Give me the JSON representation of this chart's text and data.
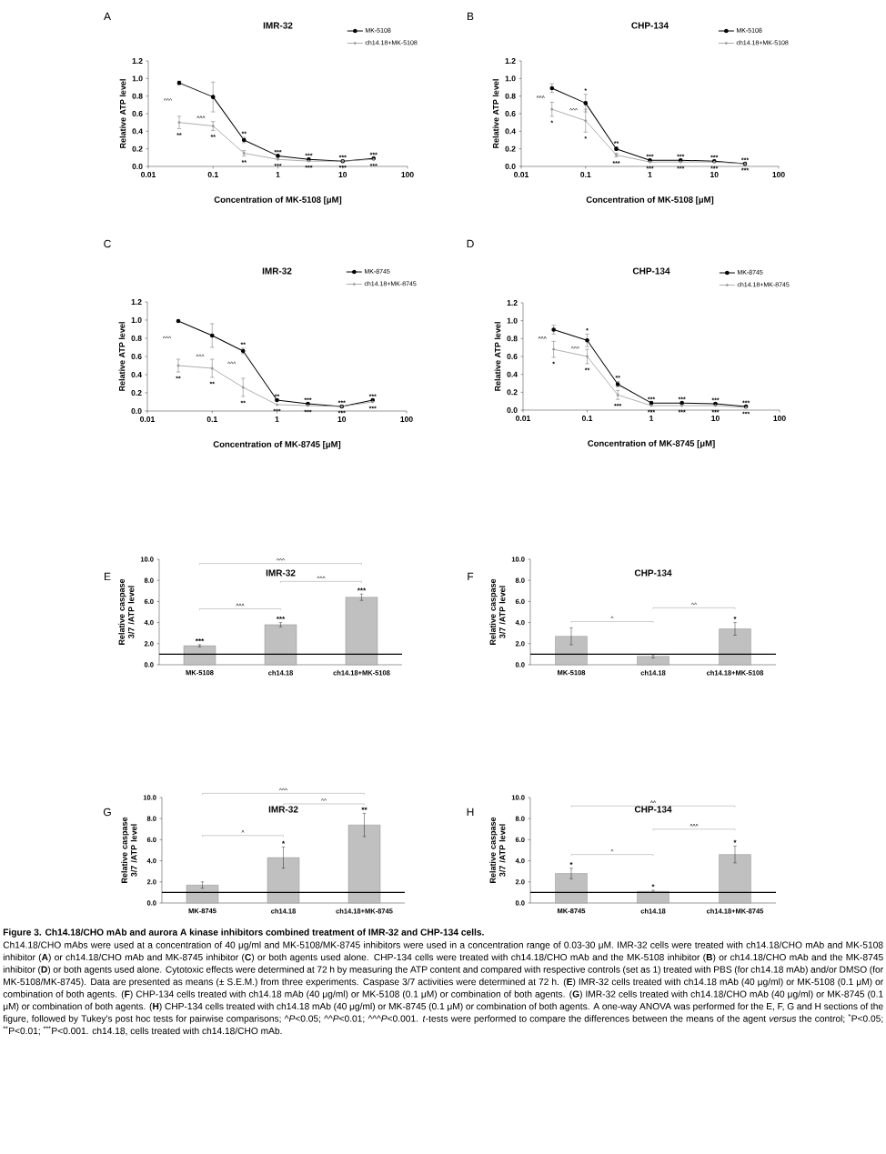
{
  "chart_data": [
    {
      "type": "line",
      "title": "IMR-32",
      "xlabel": "Concentration of MK-5108 [μM]",
      "ylabel": "Relative ATP level",
      "log": "x",
      "marker": "circle",
      "legend": "top right",
      "x": [
        0.03,
        0.1,
        0.3,
        1,
        3,
        10,
        30
      ],
      "xlim": [
        0.01,
        100
      ],
      "xticks": [
        0.01,
        0.1,
        1,
        10,
        100
      ],
      "ylim": [
        0,
        1.2
      ],
      "yticks": [
        {
          "value": 0,
          "label": "0.0"
        },
        {
          "value": 0.2,
          "label": "0.2"
        },
        {
          "value": 0.4,
          "label": "0.4"
        },
        {
          "value": 0.6,
          "label": "0.6"
        },
        {
          "value": 0.8,
          "label": "0.8"
        },
        {
          "value": 1,
          "label": "1.0"
        },
        {
          "value": 1.2,
          "label": "1.2"
        }
      ],
      "series": [
        {
          "name": "MK-5108",
          "color": "#000000",
          "values": [
            0.95,
            0.79,
            0.3,
            0.12,
            0.08,
            0.06,
            0.09
          ],
          "errors": [
            0.02,
            0.17,
            0.03,
            null,
            null,
            null,
            null
          ],
          "value_labels": [
            null,
            null,
            "**",
            "***",
            "***",
            "***",
            "***"
          ]
        },
        {
          "name": "ch14.18+MK-5108",
          "color": "#999999",
          "values": [
            0.5,
            0.46,
            0.15,
            0.08,
            0.06,
            0.06,
            0.08
          ],
          "errors": [
            0.07,
            0.05,
            0.03,
            null,
            null,
            null,
            null
          ],
          "value_labels": [
            "**",
            "**",
            "**",
            "***",
            "***",
            "***",
            "***"
          ]
        }
      ],
      "annotations": [
        "A",
        "^^^",
        "^^^"
      ]
    },
    {
      "type": "line",
      "title": "CHP-134",
      "xlabel": "Concentration of MK-5108 [μM]",
      "ylabel": "Relative ATP level",
      "log": "x",
      "marker": "circle",
      "legend": "top right",
      "x": [
        0.03,
        0.1,
        0.3,
        1,
        3,
        10,
        30
      ],
      "xlim": [
        0.01,
        100
      ],
      "xticks": [
        0.01,
        0.1,
        1,
        10,
        100
      ],
      "ylim": [
        0,
        1.2
      ],
      "yticks": [
        {
          "value": 0,
          "label": "0.0"
        },
        {
          "value": 0.2,
          "label": "0.2"
        },
        {
          "value": 0.4,
          "label": "0.4"
        },
        {
          "value": 0.6,
          "label": "0.6"
        },
        {
          "value": 0.8,
          "label": "0.8"
        },
        {
          "value": 1,
          "label": "1.0"
        },
        {
          "value": 1.2,
          "label": "1.2"
        }
      ],
      "series": [
        {
          "name": "MK-5108",
          "color": "#000000",
          "values": [
            0.89,
            0.72,
            0.2,
            0.07,
            0.07,
            0.06,
            0.03
          ],
          "errors": [
            0.05,
            0.1,
            0.02,
            null,
            null,
            null,
            null
          ],
          "value_labels": [
            null,
            "*",
            "**",
            "***",
            "***",
            "***",
            "***"
          ]
        },
        {
          "name": "ch14.18+MK-5108",
          "color": "#999999",
          "values": [
            0.65,
            0.52,
            0.13,
            0.05,
            0.05,
            0.05,
            0.03
          ],
          "errors": [
            0.08,
            0.13,
            0.02,
            null,
            null,
            null,
            null
          ],
          "value_labels": [
            "*",
            "*",
            "***",
            "***",
            "***",
            "***",
            "***"
          ]
        }
      ],
      "annotations": [
        "B",
        "^^^",
        "^^^"
      ]
    },
    {
      "type": "line",
      "title": "IMR-32",
      "xlabel": "Concentration of MK-8745 [μM]",
      "ylabel": "Relative ATP level",
      "log": "x",
      "marker": "circle",
      "legend": "top right",
      "x": [
        0.03,
        0.1,
        0.3,
        1,
        3,
        10,
        30
      ],
      "xlim": [
        0.01,
        100
      ],
      "xticks": [
        0.01,
        0.1,
        1,
        10,
        100
      ],
      "ylim": [
        0,
        1.2
      ],
      "yticks": [
        {
          "value": 0,
          "label": "0.0"
        },
        {
          "value": 0.2,
          "label": "0.2"
        },
        {
          "value": 0.4,
          "label": "0.4"
        },
        {
          "value": 0.6,
          "label": "0.6"
        },
        {
          "value": 0.8,
          "label": "0.8"
        },
        {
          "value": 1,
          "label": "1.0"
        },
        {
          "value": 1.2,
          "label": "1.2"
        }
      ],
      "series": [
        {
          "name": "MK-8745",
          "color": "#000000",
          "values": [
            0.99,
            0.83,
            0.66,
            0.12,
            0.08,
            0.05,
            0.12
          ],
          "errors": [
            null,
            0.13,
            0.03,
            null,
            null,
            null,
            null
          ],
          "value_labels": [
            null,
            null,
            "**",
            "**",
            "***",
            "***",
            "***"
          ]
        },
        {
          "name": "ch14.18+MK-8745",
          "color": "#999999",
          "values": [
            0.5,
            0.47,
            0.26,
            0.07,
            0.06,
            0.05,
            0.1
          ],
          "errors": [
            0.07,
            0.1,
            0.1,
            null,
            null,
            null,
            null
          ],
          "value_labels": [
            "**",
            "**",
            "**",
            "***",
            "***",
            "***",
            "***"
          ]
        }
      ],
      "annotations": [
        "C",
        "^^^",
        "^^^",
        "^^^"
      ]
    },
    {
      "type": "line",
      "title": "CHP-134",
      "xlabel": "Concentration of MK-8745 [μM]",
      "ylabel": "Relative ATP level",
      "log": "x",
      "marker": "circle",
      "legend": "top right",
      "x": [
        0.03,
        0.1,
        0.3,
        1,
        3,
        10,
        30
      ],
      "xlim": [
        0.01,
        100
      ],
      "xticks": [
        0.01,
        0.1,
        1,
        10,
        100
      ],
      "ylim": [
        0,
        1.2
      ],
      "yticks": [
        {
          "value": 0,
          "label": "0.0"
        },
        {
          "value": 0.2,
          "label": "0.2"
        },
        {
          "value": 0.4,
          "label": "0.4"
        },
        {
          "value": 0.6,
          "label": "0.6"
        },
        {
          "value": 0.8,
          "label": "0.8"
        },
        {
          "value": 1,
          "label": "1.0"
        },
        {
          "value": 1.2,
          "label": "1.2"
        }
      ],
      "series": [
        {
          "name": "MK-8745",
          "color": "#000000",
          "values": [
            0.9,
            0.78,
            0.29,
            0.08,
            0.08,
            0.07,
            0.04
          ],
          "errors": [
            0.05,
            0.07,
            0.03,
            null,
            null,
            null,
            null
          ],
          "value_labels": [
            null,
            "*",
            "**",
            "***",
            "***",
            "***",
            "***"
          ]
        },
        {
          "name": "ch14.18+MK-8745",
          "color": "#999999",
          "values": [
            0.68,
            0.6,
            0.17,
            0.05,
            0.05,
            0.05,
            0.03
          ],
          "errors": [
            0.09,
            0.08,
            0.05,
            null,
            null,
            null,
            null
          ],
          "value_labels": [
            "*",
            "**",
            "***",
            "***",
            "***",
            "***",
            "***"
          ]
        }
      ],
      "annotations": [
        "D",
        "^^^",
        "^^^"
      ]
    },
    {
      "type": "bar",
      "title": "IMR-32",
      "ylabel": "Relative caspase 3/7 /ATP level",
      "categories": [
        "MK-5108",
        "ch14.18",
        "ch14.18+MK-5108"
      ],
      "color": "#c0c0c0",
      "values": [
        1.8,
        3.8,
        6.4
      ],
      "errors": [
        0.1,
        0.2,
        0.3
      ],
      "value_labels": [
        "***",
        "***",
        "***"
      ],
      "ylim": [
        0,
        10
      ],
      "yticks": [
        {
          "value": 0,
          "label": "0.0"
        },
        {
          "value": 2,
          "label": "2.0"
        },
        {
          "value": 4,
          "label": "4.0"
        },
        {
          "value": 6,
          "label": "6.0"
        },
        {
          "value": 8,
          "label": "8.0"
        },
        {
          "value": 10,
          "label": "10.0"
        }
      ],
      "ref_lines": [
        {
          "axis": "y",
          "value": 1,
          "color": "#000000"
        }
      ],
      "annotations": [
        "E",
        "^^^",
        "^^^",
        "^^^"
      ]
    },
    {
      "type": "bar",
      "title": "CHP-134",
      "ylabel": "Relative caspase 3/7 /ATP level",
      "categories": [
        "MK-5108",
        "ch14.18",
        "ch14.18+MK-5108"
      ],
      "color": "#c0c0c0",
      "values": [
        2.7,
        0.8,
        3.4
      ],
      "errors": [
        0.8,
        0.15,
        0.6
      ],
      "value_labels": [
        null,
        null,
        "*"
      ],
      "ylim": [
        0,
        10
      ],
      "yticks": [
        {
          "value": 0,
          "label": "0.0"
        },
        {
          "value": 2,
          "label": "2.0"
        },
        {
          "value": 4,
          "label": "4.0"
        },
        {
          "value": 6,
          "label": "6.0"
        },
        {
          "value": 8,
          "label": "8.0"
        },
        {
          "value": 10,
          "label": "10.0"
        }
      ],
      "ref_lines": [
        {
          "axis": "y",
          "value": 1,
          "color": "#000000"
        }
      ],
      "annotations": [
        "F",
        "^",
        "^^"
      ]
    },
    {
      "type": "bar",
      "title": "IMR-32",
      "ylabel": "Relative caspase 3/7 /ATP level",
      "categories": [
        "MK-8745",
        "ch14.18",
        "ch14.18+MK-8745"
      ],
      "color": "#c0c0c0",
      "values": [
        1.7,
        4.3,
        7.4
      ],
      "errors": [
        0.3,
        1.0,
        1.1
      ],
      "value_labels": [
        null,
        "*",
        "**"
      ],
      "ylim": [
        0,
        10
      ],
      "yticks": [
        {
          "value": 0,
          "label": "0.0"
        },
        {
          "value": 2,
          "label": "2.0"
        },
        {
          "value": 4,
          "label": "4.0"
        },
        {
          "value": 6,
          "label": "6.0"
        },
        {
          "value": 8,
          "label": "8.0"
        },
        {
          "value": 10,
          "label": "10.0"
        }
      ],
      "ref_lines": [
        {
          "axis": "y",
          "value": 1,
          "color": "#000000"
        }
      ],
      "annotations": [
        "G",
        "^",
        "^^",
        "^^^"
      ]
    },
    {
      "type": "bar",
      "title": "CHP-134",
      "ylabel": "Relative caspase 3/7 /ATP level",
      "categories": [
        "MK-8745",
        "ch14.18",
        "ch14.18+MK-8745"
      ],
      "color": "#c0c0c0",
      "values": [
        2.8,
        1.1,
        4.6
      ],
      "errors": [
        0.5,
        0.1,
        0.8
      ],
      "value_labels": [
        "*",
        "*",
        "*"
      ],
      "ylim": [
        0,
        10
      ],
      "yticks": [
        {
          "value": 0,
          "label": "0.0"
        },
        {
          "value": 2,
          "label": "2.0"
        },
        {
          "value": 4,
          "label": "4.0"
        },
        {
          "value": 6,
          "label": "6.0"
        },
        {
          "value": 8,
          "label": "8.0"
        },
        {
          "value": 10,
          "label": "10.0"
        }
      ],
      "ref_lines": [
        {
          "axis": "y",
          "value": 1,
          "color": "#000000"
        }
      ],
      "annotations": [
        "H",
        "^",
        "^^^",
        "^^",
        "Figure 3. Ch14.18/CHO mAb and aurora A kinase inhibitors combined treatment of IMR-32 and CHP-134 cells.",
        "Ch14.18/CHO mAbs were used at a concentration of 40 μg/ml and MK-5108/MK-8745 inhibitors were used in a concentration range of 0.03-30 μM. IMR-32 cells were treated with ch14.18/CHO mAb and MK-5108 inhibitor (**A**) or ch14.18/CHO mAb and MK-8745 inhibitor (**C**) or both agents used alone. CHP-134 cells were treated with ch14.18/CHO mAb and the MK-5108 inhibitor (**B**) or ch14.18/CHO mAb and the MK-8745 inhibitor (**D**) or both agents used alone. Cytotoxic effects were determined at 72 h by measuring the ATP content and compared with respective controls (set as 1) treated with PBS (for ch14.18 mAb) and/or DMSO (for MK-5108/MK-8745). Data are presented as means (± S.E.M.) from three experiments. Caspase 3/7 activities were determined at 72 h. (**E**) IMR-32 cells treated with ch14.18 mAb (40 μg/ml) or MK-5108 (0.1 μM) or combination of both agents. (**F**) CHP-134 cells treated with ch14.18 mAb (40 μg/ml) or MK-5108 (0.1 μM) or combination of both agents. (**G**) IMR-32 cells treated with ch14.18/CHO mAb (40 μg/ml) or MK-8745 (0.1 μM) or combination of both agents. (**H**) CHP-134 cells treated with ch14.18 mAb (40 μg/ml) or MK-8745 (0.1 μM) or combination of both agents. A one-way ANOVA was performed for the E, F, G and H sections of the figure, followed by Tukey's post hoc tests for pairwise comparisons; ^*P*<0.05; ^^*P*<0.01; ^^^*P*<0.001. *t*-tests were performed to compare the differences between the means of the agent *versus* the control; $^{*}$P<0.05; $^{**}$P<0.01; $^{***}$P<0.001. ch14.18, cells treated with ch14.18/CHO mAb."
      ]
    }
  ]
}
